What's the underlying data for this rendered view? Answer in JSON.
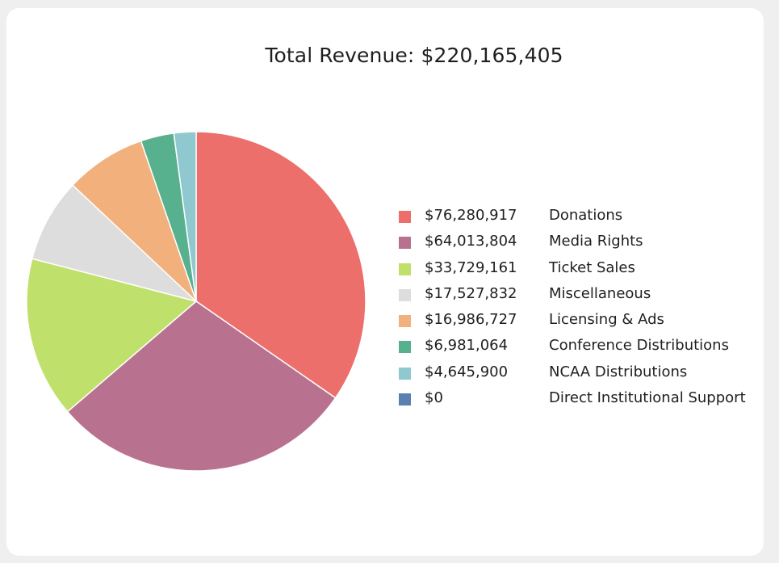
{
  "chart_data": {
    "type": "pie",
    "title": "Total Revenue: $220,165,405",
    "slices": [
      {
        "label": "Donations",
        "value": 76280917,
        "display": "$76,280,917",
        "color": "#ec6f6b"
      },
      {
        "label": "Media Rights",
        "value": 64013804,
        "display": "$64,013,804",
        "color": "#b87290"
      },
      {
        "label": "Ticket Sales",
        "value": 33729161,
        "display": "$33,729,161",
        "color": "#bfe06a"
      },
      {
        "label": "Miscellaneous",
        "value": 17527832,
        "display": "$17,527,832",
        "color": "#dddddd"
      },
      {
        "label": "Licensing & Ads",
        "value": 16986727,
        "display": "$16,986,727",
        "color": "#f2b07c"
      },
      {
        "label": "Conference Distributions",
        "value": 6981064,
        "display": "$6,981,064",
        "color": "#57b08e"
      },
      {
        "label": "NCAA Distributions",
        "value": 4645900,
        "display": "$4,645,900",
        "color": "#8fc8cf"
      },
      {
        "label": "Direct Institutional Support",
        "value": 0,
        "display": "$0",
        "color": "#5b7fae"
      }
    ],
    "legend_position": "right"
  }
}
